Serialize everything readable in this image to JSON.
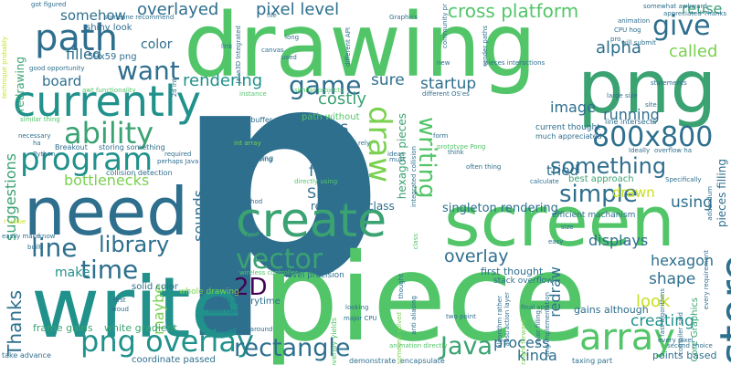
{
  "palette": [
    "#2e6f8e",
    "#3ba272",
    "#52c569",
    "#7ad151",
    "#c7e020",
    "#21918c",
    "#440154",
    "#35b779",
    "#1fa187"
  ],
  "words": [
    {
      "t": "p",
      "c": "#2e6f8e"
    },
    {
      "t": "piece",
      "c": "#52c569"
    },
    {
      "t": "drawing",
      "c": "#52c569"
    },
    {
      "t": "png",
      "c": "#3ba272"
    },
    {
      "t": "screen",
      "c": "#52c569"
    },
    {
      "t": "write",
      "c": "#21918c"
    },
    {
      "t": "need",
      "c": "#2e6f8e"
    },
    {
      "t": "create",
      "c": "#3ba272"
    },
    {
      "t": "currently",
      "c": "#21918c"
    },
    {
      "t": "program",
      "c": "#21918c"
    },
    {
      "t": "ability",
      "c": "#3ba272"
    },
    {
      "t": "path",
      "c": "#2e6f8e"
    },
    {
      "t": "png overlay",
      "c": "#21918c"
    },
    {
      "t": "time",
      "c": "#2e6f8e"
    },
    {
      "t": "library",
      "c": "#2e6f8e"
    },
    {
      "t": "line",
      "c": "#2e6f8e"
    },
    {
      "t": "vector",
      "c": "#3ba272"
    },
    {
      "t": "rectangle",
      "c": "#2e6f8e"
    },
    {
      "t": "Java",
      "c": "#3ba272"
    },
    {
      "t": "array",
      "c": "#52c569"
    },
    {
      "t": "store",
      "c": "#2e6f8e"
    },
    {
      "t": "800x800",
      "c": "#2e6f8e"
    },
    {
      "t": "something",
      "c": "#2e6f8e"
    },
    {
      "t": "simple",
      "c": "#2e6f8e"
    },
    {
      "t": "give",
      "c": "#2e6f8e"
    },
    {
      "t": "game",
      "c": "#2e6f8e"
    },
    {
      "t": "want",
      "c": "#2e6f8e"
    },
    {
      "t": "draw",
      "c": "#7ad151"
    },
    {
      "t": "writing",
      "c": "#52c569"
    },
    {
      "t": "em",
      "c": "#2e6f8e"
    },
    {
      "t": "overlayed",
      "c": "#2e6f8e"
    },
    {
      "t": "pixel level",
      "c": "#2e6f8e"
    },
    {
      "t": "cross platform",
      "c": "#52c569"
    },
    {
      "t": "alpha",
      "c": "#2e6f8e"
    },
    {
      "t": "called",
      "c": "#7ad151"
    },
    {
      "t": "rendering",
      "c": "#21918c"
    },
    {
      "t": "sure",
      "c": "#2e6f8e"
    },
    {
      "t": "startup",
      "c": "#2e6f8e"
    },
    {
      "t": "costly",
      "c": "#3ba272"
    },
    {
      "t": "seems",
      "c": "#2e6f8e"
    },
    {
      "t": "frame",
      "c": "#2e6f8e"
    },
    {
      "t": "Shark",
      "c": "#2e6f8e"
    },
    {
      "t": "image",
      "c": "#2e6f8e"
    },
    {
      "t": "running",
      "c": "#2e6f8e"
    },
    {
      "t": "tried",
      "c": "#2e6f8e"
    },
    {
      "t": "drawn",
      "c": "#c7e020"
    },
    {
      "t": "using",
      "c": "#2e6f8e"
    },
    {
      "t": "2D",
      "c": "#440154"
    },
    {
      "t": "overlay",
      "c": "#2e6f8e"
    },
    {
      "t": "Thanks",
      "c": "#2e6f8e"
    },
    {
      "t": "suggestions",
      "c": "#3ba272"
    },
    {
      "t": "bottlenecks",
      "c": "#7ad151"
    },
    {
      "t": "board",
      "c": "#2e6f8e"
    },
    {
      "t": "filled",
      "c": "#2e6f8e"
    },
    {
      "t": "somehow",
      "c": "#2e6f8e"
    },
    {
      "t": "color",
      "c": "#2e6f8e"
    },
    {
      "t": "make",
      "c": "#21918c"
    },
    {
      "t": "maybe",
      "c": "#7ad151"
    },
    {
      "t": "sounds",
      "c": "#2e6f8e"
    },
    {
      "t": "look",
      "c": "#c7e020"
    },
    {
      "t": "shape",
      "c": "#2e6f8e"
    },
    {
      "t": "creating",
      "c": "#21918c"
    },
    {
      "t": "process",
      "c": "#2e6f8e"
    },
    {
      "t": "kinda",
      "c": "#2e6f8e"
    },
    {
      "t": "displays",
      "c": "#2e6f8e"
    },
    {
      "t": "hexagon",
      "c": "#2e6f8e"
    },
    {
      "t": "redraw",
      "c": "#2e6f8e"
    },
    {
      "t": "reuse",
      "c": "#3ba272"
    },
    {
      "t": "singleton rendering",
      "c": "#2e6f8e"
    },
    {
      "t": "rendering class",
      "c": "#2e6f8e"
    },
    {
      "t": "first thought",
      "c": "#2e6f8e"
    },
    {
      "t": "hexagon pieces",
      "c": "#3ba272"
    },
    {
      "t": "redrawing",
      "c": "#3ba272"
    },
    {
      "t": "59x59 png",
      "c": "#2e6f8e"
    },
    {
      "t": "shiny look",
      "c": "#2e6f8e"
    },
    {
      "t": "frame gains",
      "c": "#3ba272"
    },
    {
      "t": "white gradient",
      "c": "#3ba272"
    },
    {
      "t": "coordinate passed",
      "c": "#2e6f8e"
    },
    {
      "t": "gains although",
      "c": "#2e6f8e"
    },
    {
      "t": "points based",
      "c": "#2e6f8e"
    },
    {
      "t": "pieces filling",
      "c": "#2e6f8e"
    },
    {
      "t": "Core Graphics",
      "c": "#3ba272"
    },
    {
      "t": "solid color",
      "c": "#2e6f8e"
    },
    {
      "t": "path everytime",
      "c": "#2e6f8e"
    },
    {
      "t": "whole drawing",
      "c": "#7ad151"
    },
    {
      "t": "level precision",
      "c": "#2e6f8e"
    },
    {
      "t": "stack overflow",
      "c": "#2e6f8e"
    },
    {
      "t": "efficient machanism",
      "c": "#2e6f8e"
    },
    {
      "t": "best approach",
      "c": "#3ba272"
    },
    {
      "t": "current thought",
      "c": "#2e6f8e"
    },
    {
      "t": "much appreciated",
      "c": "#2e6f8e"
    },
    {
      "t": "line intersects",
      "c": "#2e6f8e"
    },
    {
      "t": "path without",
      "c": "#52c569"
    },
    {
      "t": "Look Note",
      "c": "#2e6f8e"
    },
    {
      "t": "school maths",
      "c": "#2e6f8e"
    },
    {
      "t": "less taxing",
      "c": "#2e6f8e"
    },
    {
      "t": "zbuffer",
      "c": "#2e6f8e"
    },
    {
      "t": "storing something",
      "c": "#2e6f8e"
    },
    {
      "t": "collision detection",
      "c": "#2e6f8e"
    },
    {
      "t": "Breakout",
      "c": "#2e6f8e"
    },
    {
      "t": "taxing part",
      "c": "#2e6f8e"
    },
    {
      "t": "take advance",
      "c": "#2e6f8e"
    },
    {
      "t": "demonstrate",
      "c": "#2e6f8e"
    },
    {
      "t": "encapsulate",
      "c": "#2e6f8e"
    },
    {
      "t": "animation",
      "c": "#2e6f8e"
    },
    {
      "t": "CPU hog",
      "c": "#2e6f8e"
    },
    {
      "t": "statements",
      "c": "#2e6f8e"
    },
    {
      "t": "large size",
      "c": "#2e6f8e"
    },
    {
      "t": "Graphics",
      "c": "#2e6f8e"
    },
    {
      "t": "file",
      "c": "#2e6f8e"
    },
    {
      "t": "long",
      "c": "#2e6f8e"
    },
    {
      "t": "canvas",
      "c": "#2e6f8e"
    },
    {
      "t": "used",
      "c": "#2e6f8e"
    },
    {
      "t": "new",
      "c": "#2e6f8e"
    },
    {
      "t": "link",
      "c": "#2e6f8e"
    },
    {
      "t": "must",
      "c": "#2e6f8e"
    },
    {
      "t": "form",
      "c": "#2e6f8e"
    },
    {
      "t": "ideas",
      "c": "#2e6f8e"
    },
    {
      "t": "think",
      "c": "#2e6f8e"
    },
    {
      "t": "often thing",
      "c": "#2e6f8e"
    },
    {
      "t": "prototype Pong",
      "c": "#52c569"
    },
    {
      "t": "overflow ha",
      "c": "#2e6f8e"
    },
    {
      "t": "Ideally",
      "c": "#2e6f8e"
    },
    {
      "t": "Specifically",
      "c": "#2e6f8e"
    },
    {
      "t": "calculate",
      "c": "#2e6f8e"
    },
    {
      "t": "got figured",
      "c": "#2e6f8e"
    },
    {
      "t": "someone recommend",
      "c": "#2e6f8e"
    },
    {
      "t": "good opportunity",
      "c": "#2e6f8e"
    },
    {
      "t": "similar thing",
      "c": "#52c569"
    },
    {
      "t": "necessary",
      "c": "#2e6f8e"
    },
    {
      "t": "required",
      "c": "#2e6f8e"
    },
    {
      "t": "perhaps Java",
      "c": "#2e6f8e"
    },
    {
      "t": "although removing",
      "c": "#2e6f8e"
    },
    {
      "t": "somewhat awkward",
      "c": "#2e6f8e"
    },
    {
      "t": "appreciated Thanks",
      "c": "#2e6f8e"
    },
    {
      "t": "Python",
      "c": "#2e6f8e"
    },
    {
      "t": "Java3D Integrated",
      "c": "#2e6f8e"
    },
    {
      "t": "pro",
      "c": "#2e6f8e"
    },
    {
      "t": "will submit",
      "c": "#2e6f8e"
    },
    {
      "t": "taking method",
      "c": "#2e6f8e"
    },
    {
      "t": "wireless controller",
      "c": "#52c569"
    },
    {
      "t": "first",
      "c": "#2e6f8e"
    },
    {
      "t": "woud",
      "c": "#2e6f8e"
    },
    {
      "t": "level control",
      "c": "#2e6f8e"
    },
    {
      "t": "layer around",
      "c": "#2e6f8e"
    },
    {
      "t": "easily make",
      "c": "#2e6f8e"
    },
    {
      "t": "built",
      "c": "#2e6f8e"
    },
    {
      "t": "know",
      "c": "#2e6f8e"
    },
    {
      "t": "every pixel",
      "c": "#2e6f8e"
    },
    {
      "t": "second choice",
      "c": "#2e6f8e"
    },
    {
      "t": "final app",
      "c": "#2e6f8e"
    },
    {
      "t": "two point",
      "c": "#2e6f8e"
    },
    {
      "t": "looking",
      "c": "#2e6f8e"
    },
    {
      "t": "major CPU",
      "c": "#2e6f8e"
    },
    {
      "t": "animation directly",
      "c": "#52c569"
    },
    {
      "t": "rusty",
      "c": "#2e6f8e"
    },
    {
      "t": "quick",
      "c": "#2e6f8e"
    },
    {
      "t": "display",
      "c": "#2e6f8e"
    },
    {
      "t": "app",
      "c": "#2e6f8e"
    },
    {
      "t": "ha",
      "c": "#2e6f8e"
    },
    {
      "t": "rely",
      "c": "#2e6f8e"
    },
    {
      "t": "instance",
      "c": "#52c569"
    },
    {
      "t": "similar projects",
      "c": "#52c569"
    },
    {
      "t": "different OS'es",
      "c": "#2e6f8e"
    },
    {
      "t": "render paths",
      "c": "#2e6f8e"
    },
    {
      "t": "pieces interactions",
      "c": "#2e6f8e"
    },
    {
      "t": "2d int",
      "c": "#2e6f8e"
    },
    {
      "t": "int array",
      "c": "#7ad151"
    },
    {
      "t": "awt functionality",
      "c": "#52c569"
    },
    {
      "t": "directly using",
      "c": "#52c569"
    },
    {
      "t": "every requirement",
      "c": "#2e6f8e"
    },
    {
      "t": "addendum",
      "c": "#2e6f8e"
    },
    {
      "t": "compiler said",
      "c": "#2e6f8e"
    },
    {
      "t": "easy",
      "c": "#2e6f8e"
    },
    {
      "t": "size",
      "c": "#2e6f8e"
    },
    {
      "t": "site",
      "c": "#2e6f8e"
    },
    {
      "t": "overlay yields",
      "c": "#52c569"
    },
    {
      "t": "integrated collision",
      "c": "#2e6f8e"
    },
    {
      "t": "anti aliasing",
      "c": "#2e6f8e"
    },
    {
      "t": "algorithm rather",
      "c": "#2e6f8e"
    },
    {
      "t": "abstraction layer",
      "c": "#2e6f8e"
    },
    {
      "t": "straight forward",
      "c": "#7ad151"
    },
    {
      "t": "someone solved",
      "c": "#7ad151"
    },
    {
      "t": "color filling",
      "c": "#2e6f8e"
    },
    {
      "t": "png implementation",
      "c": "#2e6f8e"
    },
    {
      "t": "fast algorithms",
      "c": "#2e6f8e"
    },
    {
      "t": "different API",
      "c": "#2e6f8e"
    },
    {
      "t": "community pr",
      "c": "#2e6f8e"
    },
    {
      "t": "class",
      "c": "#52c569"
    },
    {
      "t": "thought",
      "c": "#2e6f8e"
    },
    {
      "t": "r value",
      "c": "#c7e020"
    },
    {
      "t": "technique probably",
      "c": "#c7e020"
    }
  ]
}
